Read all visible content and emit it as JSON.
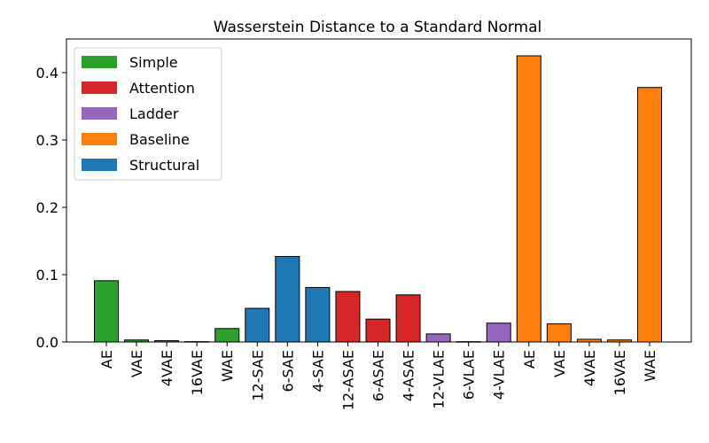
{
  "chart_data": {
    "type": "bar",
    "title": "Wasserstein Distance to a Standard Normal",
    "xlabel": "",
    "ylabel": "",
    "ylim": [
      0,
      0.45
    ],
    "yticks": [
      "0.0",
      "0.1",
      "0.2",
      "0.3",
      "0.4"
    ],
    "grid": false,
    "legend_position": "top-left",
    "categories": [
      "AE",
      "VAE",
      "4VAE",
      "16VAE",
      "WAE",
      "12-SAE",
      "6-SAE",
      "4-SAE",
      "12-ASAE",
      "6-ASAE",
      "4-ASAE",
      "12-VLAE",
      "6-VLAE",
      "4-VLAE",
      "AE",
      "VAE",
      "4VAE",
      "16VAE",
      "WAE"
    ],
    "values": [
      0.091,
      0.003,
      0.002,
      0.0005,
      0.02,
      0.05,
      0.127,
      0.081,
      0.075,
      0.034,
      0.07,
      0.012,
      0.0005,
      0.028,
      0.425,
      0.027,
      0.004,
      0.003,
      0.378
    ],
    "groups": [
      "Simple",
      "Simple",
      "Simple",
      "Simple",
      "Simple",
      "Structural",
      "Structural",
      "Structural",
      "Attention",
      "Attention",
      "Attention",
      "Ladder",
      "Ladder",
      "Ladder",
      "Baseline",
      "Baseline",
      "Baseline",
      "Baseline",
      "Baseline"
    ],
    "legend": [
      {
        "name": "Simple",
        "color": "#2ca02c"
      },
      {
        "name": "Attention",
        "color": "#d62728"
      },
      {
        "name": "Ladder",
        "color": "#9467bd"
      },
      {
        "name": "Baseline",
        "color": "#ff7f0e"
      },
      {
        "name": "Structural",
        "color": "#1f77b4"
      }
    ]
  }
}
